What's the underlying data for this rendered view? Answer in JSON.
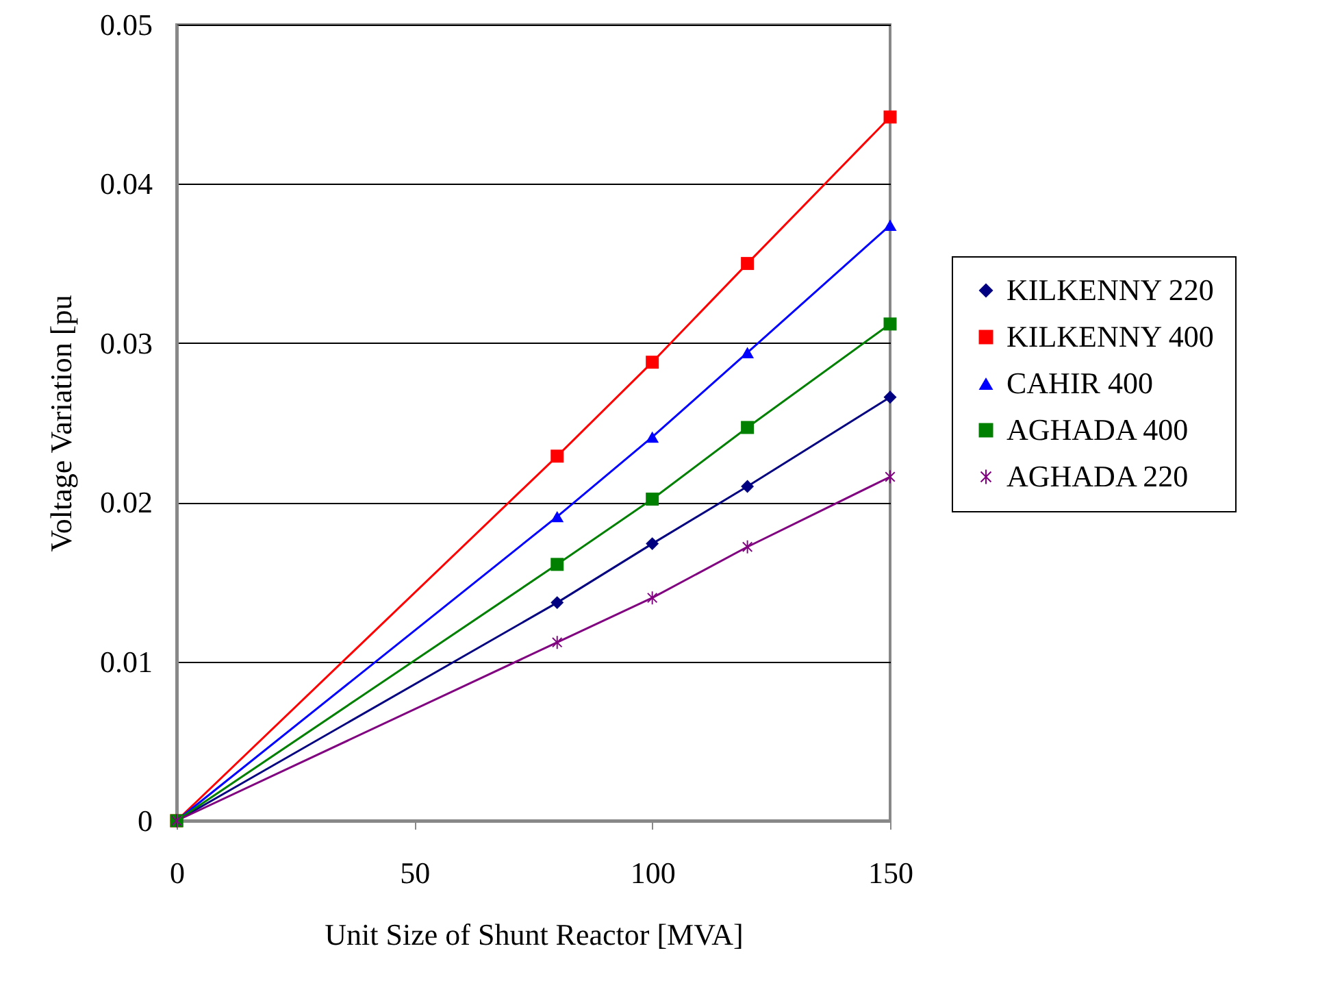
{
  "chart_data": {
    "type": "line",
    "xlabel": "Unit Size of Shunt Reactor [MVA]",
    "ylabel": "Voltage Variation [pu",
    "x": [
      0,
      80,
      100,
      120,
      150
    ],
    "xlim": [
      0,
      150
    ],
    "xticks": [
      0,
      50,
      100,
      150
    ],
    "ylim": [
      0,
      0.05
    ],
    "yticks": [
      0,
      0.01,
      0.02,
      0.03,
      0.04,
      0.05
    ],
    "grid": "y",
    "legend": "right",
    "series": [
      {
        "name": "KILKENNY 220",
        "color": "#000080",
        "marker": "diamond",
        "values": [
          0,
          0.0137,
          0.0174,
          0.021,
          0.0266
        ]
      },
      {
        "name": "KILKENNY 400",
        "color": "#ff0000",
        "marker": "square",
        "values": [
          0,
          0.0229,
          0.0288,
          0.035,
          0.0442
        ]
      },
      {
        "name": "CAHIR 400",
        "color": "#0000ff",
        "marker": "triangle",
        "values": [
          0,
          0.0191,
          0.0241,
          0.0294,
          0.0374
        ]
      },
      {
        "name": "AGHADA 400",
        "color": "#008000",
        "marker": "square",
        "values": [
          0,
          0.0161,
          0.0202,
          0.0247,
          0.0312
        ]
      },
      {
        "name": "AGHADA 220",
        "color": "#800080",
        "marker": "cross",
        "values": [
          0,
          0.0112,
          0.014,
          0.0172,
          0.0216
        ]
      }
    ]
  }
}
